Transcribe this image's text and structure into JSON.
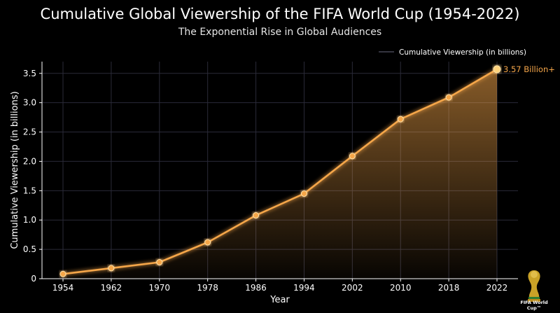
{
  "chart_data": {
    "type": "line",
    "title": "Cumulative Global Viewership of the FIFA World Cup (1954-2022)",
    "subtitle": "The Exponential Rise in Global Audiences",
    "xlabel": "Year",
    "ylabel": "Cumulative Viewership (in billions)",
    "x": [
      1954,
      1962,
      1970,
      1978,
      1986,
      1994,
      2002,
      2010,
      2018,
      2022
    ],
    "series": [
      {
        "name": "Cumulative Viewership (in billions)",
        "values": [
          0.08,
          0.18,
          0.28,
          0.62,
          1.08,
          1.45,
          2.09,
          2.72,
          3.09,
          3.57
        ]
      }
    ],
    "ylim": [
      0,
      3.7
    ],
    "yticks": [
      0,
      0.5,
      1.0,
      1.5,
      2.0,
      2.5,
      3.0,
      3.5
    ],
    "ytick_labels": [
      "0",
      "0.5",
      "1.0",
      "1.5",
      "2.0",
      "2.5",
      "3.0",
      "3.5"
    ],
    "xticks": [
      "1954",
      "1962",
      "1970",
      "1978",
      "1986",
      "1994",
      "2002",
      "2010",
      "2018",
      "2022"
    ],
    "annotation": "3.57 Billion+",
    "legend": "top-right",
    "grid": true,
    "colors": {
      "line": "#f5a64a",
      "background": "#000000",
      "grid": "#2a2a38"
    }
  },
  "logo": {
    "text": "FIFA World Cup™"
  }
}
